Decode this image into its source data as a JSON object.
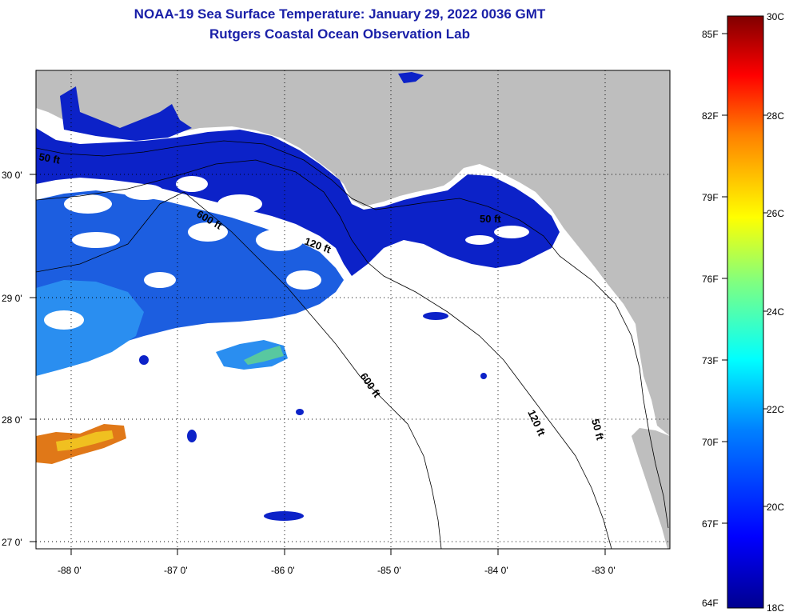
{
  "title": {
    "line1": "NOAA-19 Sea Surface Temperature:  January 29, 2022 0036 GMT",
    "line2": "Rutgers Coastal Ocean Observation Lab"
  },
  "axes": {
    "lon_labels": [
      "-88 0'",
      "-87 0'",
      "-86 0'",
      "-85 0'",
      "-84 0'",
      "-83 0'"
    ],
    "lat_labels": [
      "30 0'",
      "29 0'",
      "28 0'",
      "27 0'"
    ]
  },
  "contours": {
    "label_50": "50 ft",
    "label_120": "120 ft",
    "label_600": "600 ft"
  },
  "colorbar": {
    "celsius_labels": [
      "30C",
      "28C",
      "26C",
      "24C",
      "22C",
      "20C",
      "18C"
    ],
    "fahrenheit_labels": [
      "85F",
      "82F",
      "79F",
      "76F",
      "73F",
      "70F",
      "67F",
      "64F"
    ]
  },
  "colors": {
    "title": "#1a20a8",
    "land": "#bebebe",
    "cold_water": "#0c22c8",
    "mid_water": "#1c62e6",
    "warm_patch": "#e07818"
  }
}
